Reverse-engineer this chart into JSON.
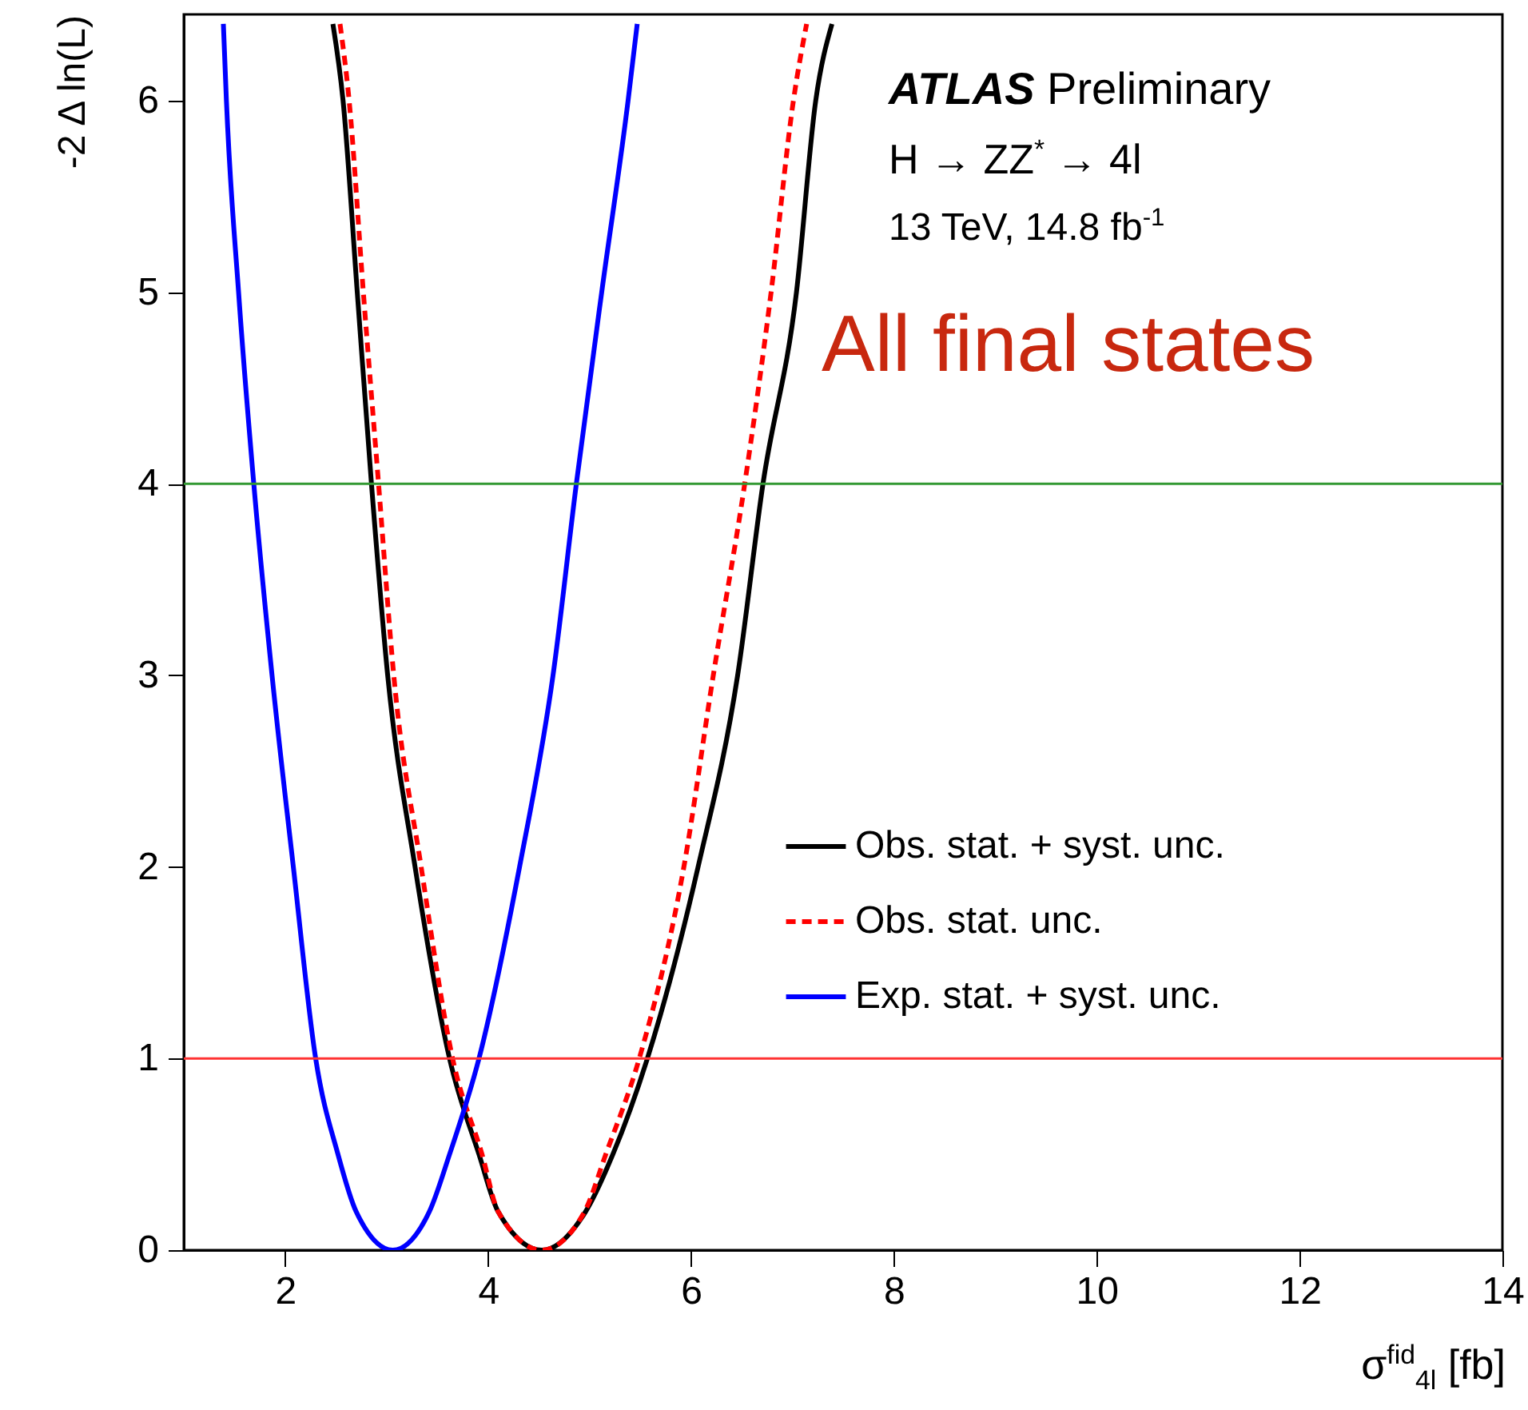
{
  "chart_data": {
    "type": "line",
    "xlabel": "σ$^{fid}$$_{4l}$ [fb]",
    "ylabel": "-2 Δ ln(L)",
    "xlim": [
      1,
      14
    ],
    "ylim": [
      0,
      6.45
    ],
    "xticks": [
      2,
      4,
      6,
      8,
      10,
      12,
      14
    ],
    "yticks": [
      0,
      1,
      2,
      3,
      4,
      5,
      6
    ],
    "legend": "right",
    "grid": false,
    "annotations": [
      "ATLAS Preliminary",
      "H → ZZ$^{*}$ → 4l",
      "13 TeV, 14.8 fb$^{-1}$",
      "All final states"
    ],
    "ref_lines": [
      {
        "axis": "y",
        "value": 4,
        "color": "#339933"
      },
      {
        "axis": "y",
        "value": 1,
        "color": "#ff3333"
      }
    ],
    "series": [
      {
        "name": "Obs. stat. + syst. unc.",
        "color": "#000000",
        "line_style": "solid",
        "x": [
          2.47,
          2.57,
          2.71,
          2.85,
          3.01,
          3.28,
          3.62,
          3.91,
          4.1,
          4.53,
          4.96,
          5.23,
          5.57,
          6.07,
          6.46,
          6.71,
          7.04,
          7.23,
          7.39
        ],
        "values": [
          6.4,
          6,
          5,
          4,
          3,
          2,
          1,
          0.5,
          0.2,
          0,
          0.2,
          0.5,
          1,
          2,
          3,
          4,
          5,
          6,
          6.4
        ]
      },
      {
        "name": "Obs. stat. unc.",
        "color": "#ff0000",
        "line_style": "dashed",
        "x": [
          2.54,
          2.63,
          2.77,
          2.92,
          3.07,
          3.34,
          3.65,
          3.94,
          4.1,
          4.53,
          4.95,
          5.16,
          5.49,
          5.93,
          6.22,
          6.53,
          6.79,
          7.01,
          7.14
        ],
        "values": [
          6.4,
          6,
          5,
          4,
          3,
          2,
          1,
          0.5,
          0.2,
          0,
          0.2,
          0.5,
          1,
          2,
          3,
          4,
          5,
          6,
          6.4
        ]
      },
      {
        "name": "Exp. stat. + syst. unc.",
        "color": "#0000ff",
        "line_style": "solid",
        "x": [
          1.39,
          1.42,
          1.54,
          1.69,
          1.87,
          2.08,
          2.3,
          2.52,
          2.7,
          3.06,
          3.42,
          3.62,
          3.91,
          4.31,
          4.64,
          4.87,
          5.12,
          5.38,
          5.47
        ],
        "values": [
          6.4,
          6,
          5,
          4,
          3,
          2,
          1,
          0.5,
          0.2,
          0,
          0.2,
          0.5,
          1,
          2,
          3,
          4,
          5,
          6,
          6.4
        ]
      }
    ]
  }
}
